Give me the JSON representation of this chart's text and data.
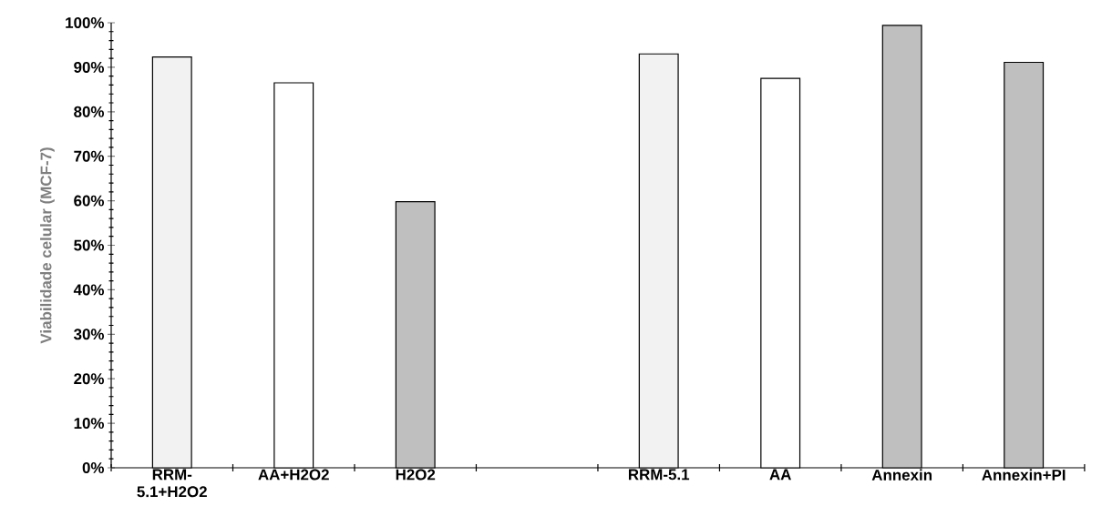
{
  "chart_data": {
    "type": "bar",
    "ylabel": "Viabilidade celular (MCF-7)",
    "categories": [
      "RRM-5.1+H2O2",
      "AA+H2O2",
      "H2O2",
      null,
      "RRM-5.1",
      "AA",
      "Annexin",
      "Annexin+PI"
    ],
    "values": [
      92.3,
      86.5,
      59.8,
      null,
      93.0,
      87.5,
      99.4,
      91.1
    ],
    "colors": [
      "#f2f2f2",
      "#ffffff",
      "#bfbfbf",
      null,
      "#f2f2f2",
      "#ffffff",
      "#bfbfbf",
      "#bfbfbf"
    ],
    "ylim": [
      0,
      100
    ],
    "yticks": [
      {
        "value": 0,
        "label": "0%"
      },
      {
        "value": 2,
        "label": null
      },
      {
        "value": 4,
        "label": null
      },
      {
        "value": 6,
        "label": null
      },
      {
        "value": 8,
        "label": null
      },
      {
        "value": 10,
        "label": "10%"
      },
      {
        "value": 12,
        "label": null
      },
      {
        "value": 14,
        "label": null
      },
      {
        "value": 16,
        "label": null
      },
      {
        "value": 18,
        "label": null
      },
      {
        "value": 20,
        "label": "20%"
      },
      {
        "value": 22,
        "label": null
      },
      {
        "value": 24,
        "label": null
      },
      {
        "value": 26,
        "label": null
      },
      {
        "value": 28,
        "label": null
      },
      {
        "value": 30,
        "label": "30%"
      },
      {
        "value": 32,
        "label": null
      },
      {
        "value": 34,
        "label": null
      },
      {
        "value": 36,
        "label": null
      },
      {
        "value": 38,
        "label": null
      },
      {
        "value": 40,
        "label": "40%"
      },
      {
        "value": 42,
        "label": null
      },
      {
        "value": 44,
        "label": null
      },
      {
        "value": 46,
        "label": null
      },
      {
        "value": 48,
        "label": null
      },
      {
        "value": 50,
        "label": "50%"
      },
      {
        "value": 52,
        "label": null
      },
      {
        "value": 54,
        "label": null
      },
      {
        "value": 56,
        "label": null
      },
      {
        "value": 58,
        "label": null
      },
      {
        "value": 60,
        "label": "60%"
      },
      {
        "value": 62,
        "label": null
      },
      {
        "value": 64,
        "label": null
      },
      {
        "value": 66,
        "label": null
      },
      {
        "value": 68,
        "label": null
      },
      {
        "value": 70,
        "label": "70%"
      },
      {
        "value": 72,
        "label": null
      },
      {
        "value": 74,
        "label": null
      },
      {
        "value": 76,
        "label": null
      },
      {
        "value": 78,
        "label": null
      },
      {
        "value": 80,
        "label": "80%"
      },
      {
        "value": 82,
        "label": null
      },
      {
        "value": 84,
        "label": null
      },
      {
        "value": 86,
        "label": null
      },
      {
        "value": 88,
        "label": null
      },
      {
        "value": 90,
        "label": "90%"
      },
      {
        "value": 92,
        "label": null
      },
      {
        "value": 94,
        "label": null
      },
      {
        "value": 96,
        "label": null
      },
      {
        "value": 98,
        "label": null
      },
      {
        "value": 100,
        "label": "100%"
      }
    ]
  }
}
